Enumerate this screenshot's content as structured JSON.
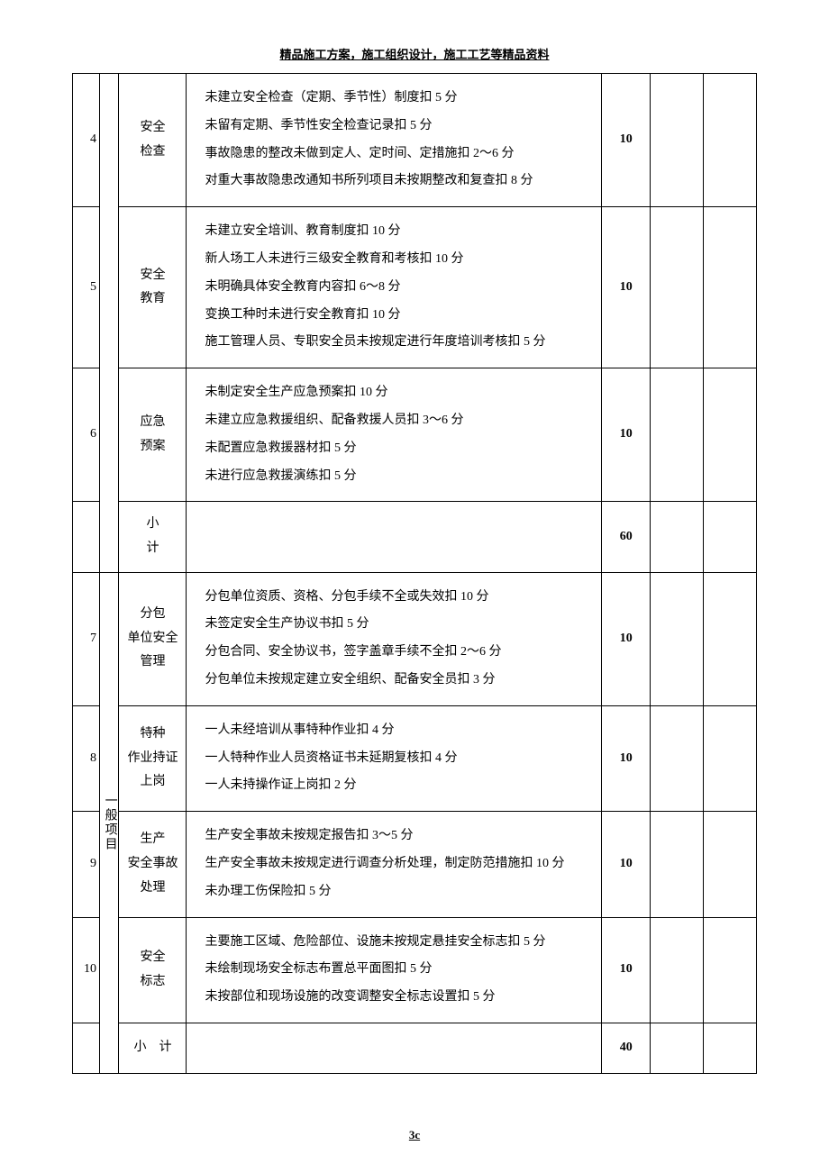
{
  "page_header": "精品施工方案，施工组织设计，施工工艺等精品资料",
  "page_footer": "3c",
  "rows": [
    {
      "idx": "4",
      "name": "安全\n检查",
      "content": [
        "未建立安全检查（定期、季节性）制度扣 5 分",
        "未留有定期、季节性安全检查记录扣 5 分",
        "事故隐患的整改未做到定人、定时间、定措施扣 2～6 分",
        "对重大事故隐患改通知书所列项目未按期整改和复查扣 8 分"
      ],
      "score": "10"
    },
    {
      "idx": "5",
      "name": "安全\n教育",
      "content": [
        "未建立安全培训、教育制度扣 10 分",
        "新人场工人未进行三级安全教育和考核扣 10 分",
        "未明确具体安全教育内容扣 6～8 分",
        "变换工种时未进行安全教育扣 10 分",
        "施工管理人员、专职安全员未按规定进行年度培训考核扣 5 分"
      ],
      "score": "10"
    },
    {
      "idx": "6",
      "name": "应急\n预案",
      "content": [
        "未制定安全生产应急预案扣 10 分",
        "未建立应急救援组织、配备救援人员扣 3～6 分",
        "未配置应急救援器材扣 5 分",
        "未进行应急救援演练扣 5 分"
      ],
      "score": "10"
    }
  ],
  "subtotal1": {
    "name": "小\n计",
    "score": "60"
  },
  "group2_label": "一般项目",
  "rows2": [
    {
      "idx": "7",
      "name": "分包\n单位安全\n管理",
      "content": [
        "分包单位资质、资格、分包手续不全或失效扣 10 分",
        "未签定安全生产协议书扣 5 分",
        "分包合同、安全协议书，签字盖章手续不全扣 2～6 分",
        "分包单位未按规定建立安全组织、配备安全员扣 3 分"
      ],
      "score": "10"
    },
    {
      "idx": "8",
      "name": "特种\n作业持证\n上岗",
      "content": [
        "一人未经培训从事特种作业扣 4 分",
        "一人特种作业人员资格证书未延期复核扣 4 分",
        "一人未持操作证上岗扣 2 分"
      ],
      "score": "10"
    },
    {
      "idx": "9",
      "name": "生产\n安全事故\n处理",
      "content": [
        "生产安全事故未按规定报告扣 3～5 分",
        "生产安全事故未按规定进行调查分析处理，制定防范措施扣 10 分",
        "未办理工伤保险扣 5 分"
      ],
      "score": "10"
    },
    {
      "idx": "10",
      "name": "安全\n标志",
      "content": [
        "主要施工区域、危险部位、设施未按规定悬挂安全标志扣 5 分",
        "未绘制现场安全标志布置总平面图扣 5 分",
        "未按部位和现场设施的改变调整安全标志设置扣 5 分"
      ],
      "score": "10"
    }
  ],
  "subtotal2": {
    "name": "小　计",
    "score": "40"
  }
}
